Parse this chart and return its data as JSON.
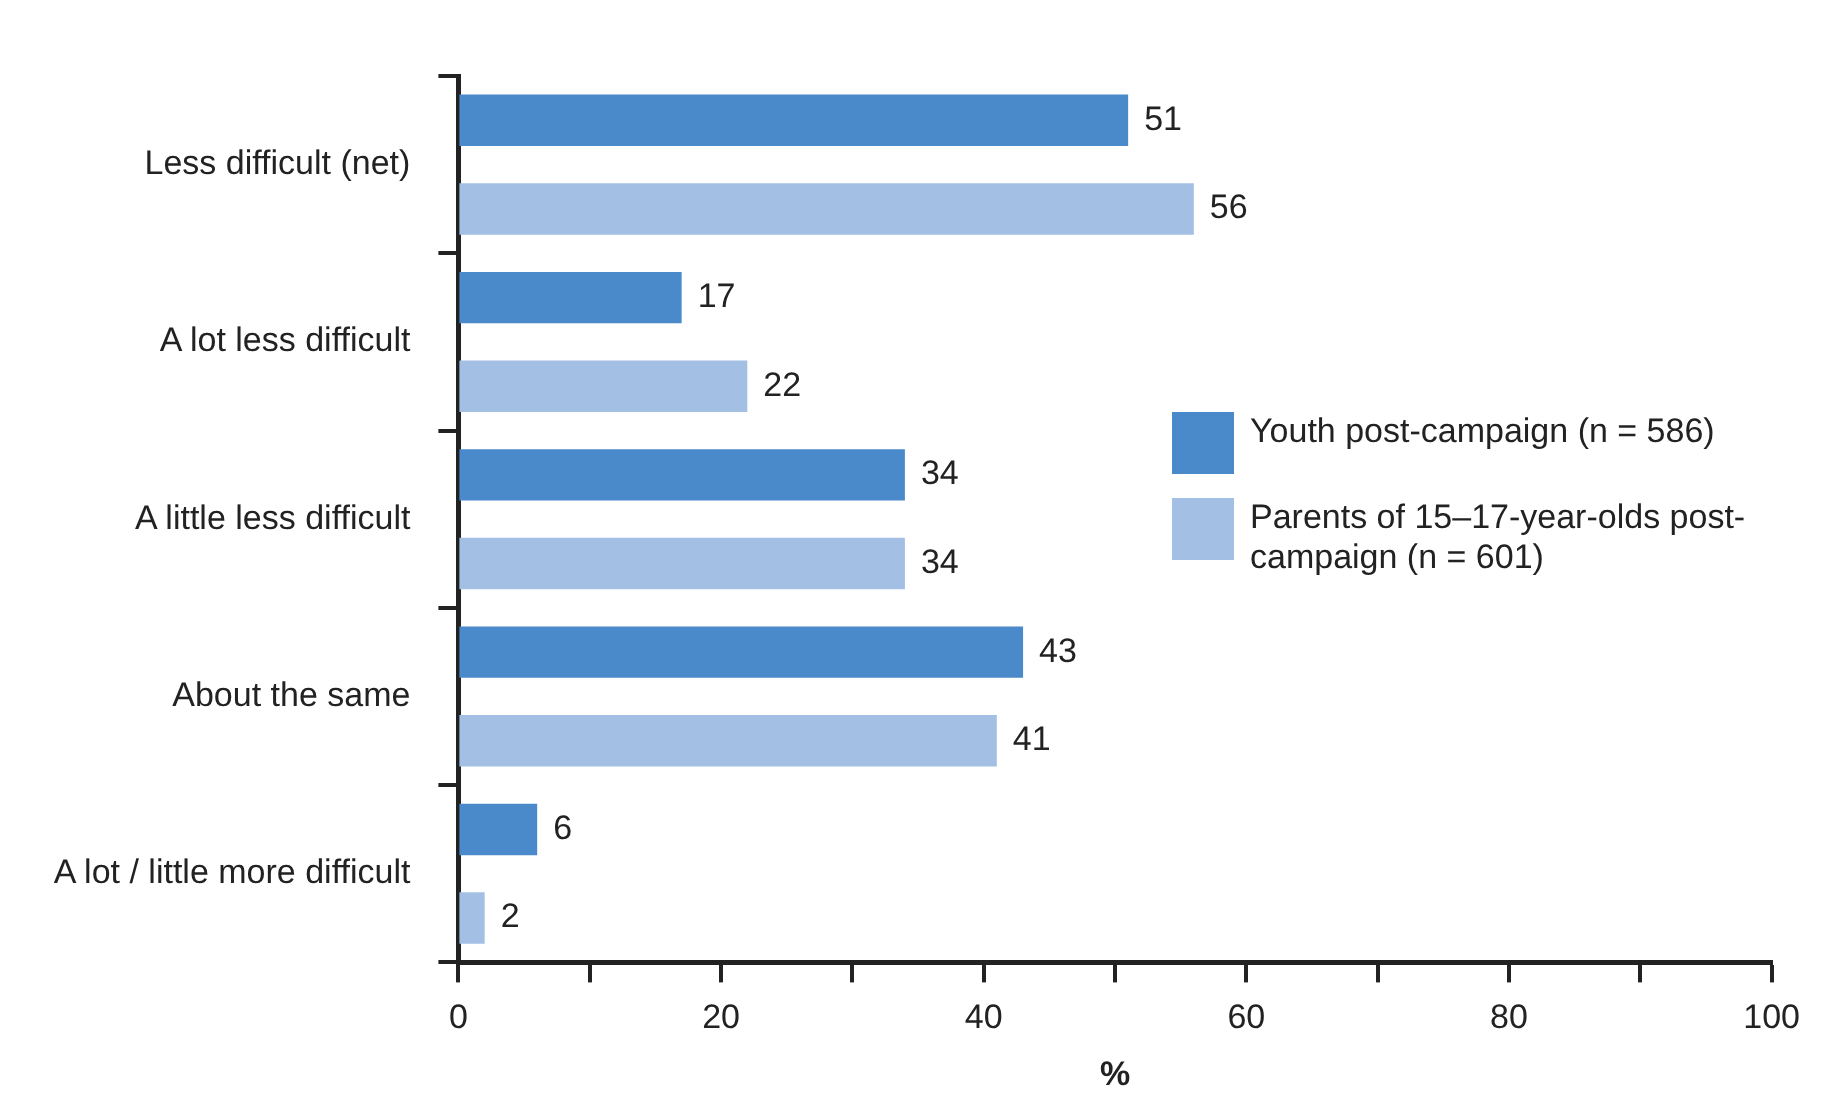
{
  "chart_data": {
    "type": "bar",
    "orientation": "horizontal",
    "xlabel": "%",
    "categories": [
      "Less difficult (net)",
      "A lot less difficult",
      "A little less difficult",
      "About the same",
      "A lot / little more difficult"
    ],
    "series": [
      {
        "name": "Youth post-campaign (n = 586)",
        "color": "#4a8acb",
        "values": [
          51,
          17,
          34,
          43,
          6
        ]
      },
      {
        "name": "Parents of 15–17-year-olds post-campaign (n = 601)",
        "color": "#a3bfe4",
        "values": [
          56,
          22,
          34,
          41,
          2
        ]
      }
    ],
    "xlim": [
      0,
      100
    ],
    "xticks": [
      0,
      {
        "value": 10,
        "label": null
      },
      20,
      {
        "value": 30,
        "label": null
      },
      40,
      {
        "value": 50,
        "label": null
      },
      60,
      {
        "value": 70,
        "label": null
      },
      80,
      {
        "value": 90,
        "label": null
      },
      100
    ],
    "data_labels": true,
    "grid": false,
    "legend": "right"
  }
}
